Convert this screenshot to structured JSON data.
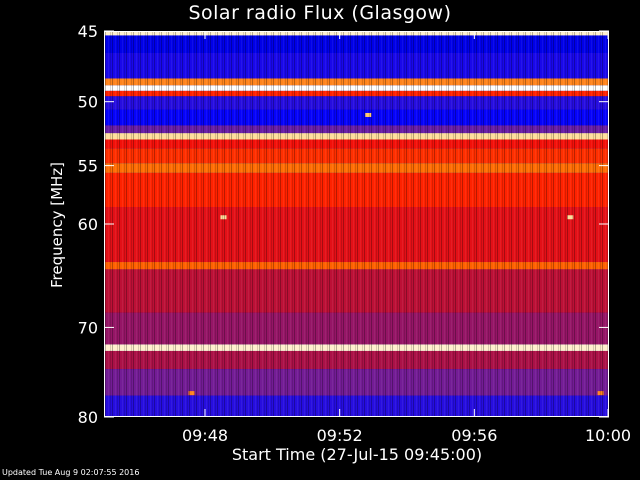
{
  "chart_data": {
    "type": "heatmap",
    "title": "Solar radio Flux (Glasgow)",
    "xlabel": "Start Time (27-Jul-15 09:45:00)",
    "ylabel": "Frequency [MHz]",
    "x_unit": "minutes past 09:00",
    "xlim": [
      45,
      60
    ],
    "ylim": [
      80,
      45
    ],
    "y_scale": "log",
    "x_ticks": [
      {
        "value": 48,
        "label": "09:48"
      },
      {
        "value": 52,
        "label": "09:52"
      },
      {
        "value": 56,
        "label": "09:56"
      },
      {
        "value": 60,
        "label": "10:00"
      }
    ],
    "y_ticks": [
      {
        "value": 45,
        "label": "45"
      },
      {
        "value": 50,
        "label": "50"
      },
      {
        "value": 55,
        "label": "55"
      },
      {
        "value": 60,
        "label": "60"
      },
      {
        "value": 70,
        "label": "70"
      },
      {
        "value": 80,
        "label": "80"
      }
    ],
    "colormap": [
      "#000070",
      "#0000ff",
      "#6020b0",
      "#b01040",
      "#ff1000",
      "#ff6a00",
      "#ffd070",
      "#ffffff"
    ],
    "frequency_bands": [
      {
        "f_from": 44.6,
        "f_to": 45.3,
        "intensity": 0.95
      },
      {
        "f_from": 45.3,
        "f_to": 46.5,
        "intensity": 0.12
      },
      {
        "f_from": 46.5,
        "f_to": 48.3,
        "intensity": 0.18
      },
      {
        "f_from": 48.3,
        "f_to": 48.8,
        "intensity": 0.75
      },
      {
        "f_from": 48.8,
        "f_to": 49.2,
        "intensity": 1.0
      },
      {
        "f_from": 49.2,
        "f_to": 49.6,
        "intensity": 0.6
      },
      {
        "f_from": 49.6,
        "f_to": 50.6,
        "intensity": 0.2
      },
      {
        "f_from": 50.6,
        "f_to": 51.8,
        "intensity": 0.15
      },
      {
        "f_from": 51.8,
        "f_to": 52.4,
        "intensity": 0.3
      },
      {
        "f_from": 52.4,
        "f_to": 52.9,
        "intensity": 0.9
      },
      {
        "f_from": 52.9,
        "f_to": 53.6,
        "intensity": 0.55
      },
      {
        "f_from": 53.6,
        "f_to": 54.8,
        "intensity": 0.62
      },
      {
        "f_from": 54.8,
        "f_to": 55.6,
        "intensity": 0.72
      },
      {
        "f_from": 55.6,
        "f_to": 58.5,
        "intensity": 0.6
      },
      {
        "f_from": 58.5,
        "f_to": 63.5,
        "intensity": 0.52
      },
      {
        "f_from": 63.5,
        "f_to": 64.2,
        "intensity": 0.7
      },
      {
        "f_from": 64.2,
        "f_to": 68.5,
        "intensity": 0.45
      },
      {
        "f_from": 68.5,
        "f_to": 71.8,
        "intensity": 0.38
      },
      {
        "f_from": 71.8,
        "f_to": 72.5,
        "intensity": 0.95
      },
      {
        "f_from": 72.5,
        "f_to": 74.5,
        "intensity": 0.42
      },
      {
        "f_from": 74.5,
        "f_to": 77.5,
        "intensity": 0.32
      },
      {
        "f_from": 77.5,
        "f_to": 80.5,
        "intensity": 0.2
      }
    ],
    "bursts": [
      {
        "t": 48.55,
        "f": 59.4,
        "intensity": 0.9
      },
      {
        "t": 58.85,
        "f": 59.4,
        "intensity": 0.9
      },
      {
        "t": 52.85,
        "f": 51.0,
        "intensity": 0.85
      },
      {
        "t": 47.6,
        "f": 77.2,
        "intensity": 0.75
      },
      {
        "t": 59.75,
        "f": 77.2,
        "intensity": 0.75
      }
    ]
  },
  "footer": "Updated Tue Aug  9 02:07:55 2016"
}
